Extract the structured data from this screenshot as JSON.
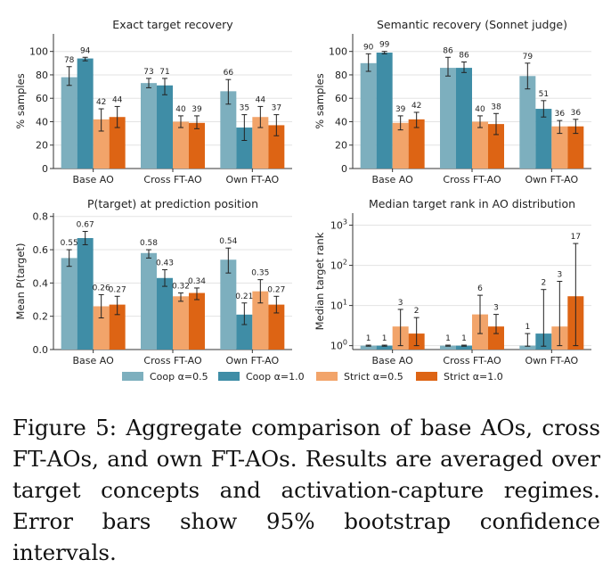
{
  "colors": {
    "coop_05": "#7dafbe",
    "coop_10": "#3f8da6",
    "strict_05": "#f2a46a",
    "strict_10": "#dd6414"
  },
  "legend": [
    {
      "label": "Coop α=0.5",
      "color_key": "coop_05"
    },
    {
      "label": "Coop α=1.0",
      "color_key": "coop_10"
    },
    {
      "label": "Strict α=0.5",
      "color_key": "strict_05"
    },
    {
      "label": "Strict α=1.0",
      "color_key": "strict_10"
    }
  ],
  "caption": "Figure 5: Aggregate comparison of base AOs, cross FT-AOs, and own FT-AOs. Results are averaged over target concepts and activation-capture regimes. Error bars show 95% bootstrap confidence intervals.",
  "chart_data": [
    {
      "type": "bar",
      "title": "Exact target recovery",
      "ylabel": "% samples",
      "xlabel": "",
      "scale": "linear",
      "ylim": [
        0,
        115
      ],
      "yticks": [
        0,
        20,
        40,
        60,
        80,
        100
      ],
      "ytick_labels": [
        "0",
        "20",
        "40",
        "60",
        "80",
        "100"
      ],
      "grid": true,
      "categories": [
        "Base AO",
        "Cross FT-AO",
        "Own FT-AO"
      ],
      "series": [
        {
          "name": "Coop α=0.5",
          "color_key": "coop_05",
          "values": [
            78,
            73,
            66
          ],
          "err_low": [
            71,
            69,
            55
          ],
          "err_high": [
            87,
            77,
            76
          ],
          "labels": [
            "78",
            "73",
            "66"
          ]
        },
        {
          "name": "Coop α=1.0",
          "color_key": "coop_10",
          "values": [
            94,
            71,
            35
          ],
          "err_low": [
            92,
            63,
            24
          ],
          "err_high": [
            95,
            77,
            46
          ],
          "labels": [
            "94",
            "71",
            "35"
          ]
        },
        {
          "name": "Strict α=0.5",
          "color_key": "strict_05",
          "values": [
            42,
            40,
            44
          ],
          "err_low": [
            32,
            35,
            35
          ],
          "err_high": [
            51,
            45,
            53
          ],
          "labels": [
            "42",
            "40",
            "44"
          ]
        },
        {
          "name": "Strict α=1.0",
          "color_key": "strict_10",
          "values": [
            44,
            39,
            37
          ],
          "err_low": [
            35,
            34,
            28
          ],
          "err_high": [
            53,
            45,
            46
          ],
          "labels": [
            "44",
            "39",
            "37"
          ]
        }
      ]
    },
    {
      "type": "bar",
      "title": "Semantic recovery (Sonnet judge)",
      "ylabel": "% samples",
      "xlabel": "",
      "scale": "linear",
      "ylim": [
        0,
        115
      ],
      "yticks": [
        0,
        20,
        40,
        60,
        80,
        100
      ],
      "ytick_labels": [
        "0",
        "20",
        "40",
        "60",
        "80",
        "100"
      ],
      "grid": true,
      "categories": [
        "Base AO",
        "Cross FT-AO",
        "Own FT-AO"
      ],
      "series": [
        {
          "name": "Coop α=0.5",
          "color_key": "coop_05",
          "values": [
            90,
            86,
            79
          ],
          "err_low": [
            83,
            79,
            68
          ],
          "err_high": [
            98,
            95,
            90
          ],
          "labels": [
            "90",
            "86",
            "79"
          ]
        },
        {
          "name": "Coop α=1.0",
          "color_key": "coop_10",
          "values": [
            99,
            86,
            51
          ],
          "err_low": [
            98,
            82,
            44
          ],
          "err_high": [
            100,
            91,
            58
          ],
          "labels": [
            "99",
            "86",
            "51"
          ]
        },
        {
          "name": "Strict α=0.5",
          "color_key": "strict_05",
          "values": [
            39,
            40,
            36
          ],
          "err_low": [
            33,
            35,
            30
          ],
          "err_high": [
            45,
            45,
            41
          ],
          "labels": [
            "39",
            "40",
            "36"
          ]
        },
        {
          "name": "Strict α=1.0",
          "color_key": "strict_10",
          "values": [
            42,
            38,
            36
          ],
          "err_low": [
            35,
            29,
            30
          ],
          "err_high": [
            48,
            47,
            42
          ],
          "labels": [
            "42",
            "38",
            "36"
          ]
        }
      ]
    },
    {
      "type": "bar",
      "title": "P(target) at prediction position",
      "ylabel": "Mean P(target)",
      "xlabel": "",
      "scale": "linear",
      "ylim": [
        0,
        0.82
      ],
      "yticks": [
        0,
        0.2,
        0.4,
        0.6,
        0.8
      ],
      "ytick_labels": [
        "0.0",
        "0.2",
        "0.4",
        "0.6",
        "0.8"
      ],
      "grid": true,
      "categories": [
        "Base AO",
        "Cross FT-AO",
        "Own FT-AO"
      ],
      "series": [
        {
          "name": "Coop α=0.5",
          "color_key": "coop_05",
          "values": [
            0.55,
            0.58,
            0.54
          ],
          "err_low": [
            0.5,
            0.55,
            0.46
          ],
          "err_high": [
            0.6,
            0.6,
            0.61
          ],
          "labels": [
            "0.55",
            "0.58",
            "0.54"
          ]
        },
        {
          "name": "Coop α=1.0",
          "color_key": "coop_10",
          "values": [
            0.67,
            0.43,
            0.21
          ],
          "err_low": [
            0.63,
            0.38,
            0.15
          ],
          "err_high": [
            0.71,
            0.48,
            0.28
          ],
          "labels": [
            "0.67",
            "0.43",
            "0.21"
          ]
        },
        {
          "name": "Strict α=0.5",
          "color_key": "strict_05",
          "values": [
            0.26,
            0.32,
            0.35
          ],
          "err_low": [
            0.19,
            0.29,
            0.28
          ],
          "err_high": [
            0.33,
            0.34,
            0.42
          ],
          "labels": [
            "0.26",
            "0.32",
            "0.35"
          ]
        },
        {
          "name": "Strict α=1.0",
          "color_key": "strict_10",
          "values": [
            0.27,
            0.34,
            0.27
          ],
          "err_low": [
            0.21,
            0.3,
            0.22
          ],
          "err_high": [
            0.32,
            0.37,
            0.32
          ],
          "labels": [
            "0.27",
            "0.34",
            "0.27"
          ]
        }
      ]
    },
    {
      "type": "bar",
      "title": "Median target rank in AO distribution",
      "ylabel": "Median target rank",
      "xlabel": "",
      "scale": "log",
      "ylim": [
        0.8,
        2000
      ],
      "yticks": [
        1,
        10,
        100,
        1000
      ],
      "ytick_labels": [
        "10^0",
        "10^1",
        "10^2",
        "10^3"
      ],
      "grid": true,
      "categories": [
        "Base AO",
        "Cross FT-AO",
        "Own FT-AO"
      ],
      "series": [
        {
          "name": "Coop α=0.5",
          "color_key": "coop_05",
          "values": [
            1,
            1,
            1
          ],
          "err_low": [
            0.97,
            0.97,
            0.97
          ],
          "err_high": [
            1.03,
            1.03,
            2
          ],
          "labels": [
            "1",
            "1",
            "1"
          ]
        },
        {
          "name": "Coop α=1.0",
          "color_key": "coop_10",
          "values": [
            1,
            1,
            2
          ],
          "err_low": [
            0.97,
            0.97,
            0.97
          ],
          "err_high": [
            1.03,
            1.03,
            25
          ],
          "labels": [
            "1",
            "1",
            "2"
          ]
        },
        {
          "name": "Strict α=0.5",
          "color_key": "strict_05",
          "values": [
            3,
            6,
            3
          ],
          "err_low": [
            1,
            2,
            1
          ],
          "err_high": [
            8,
            18,
            40
          ],
          "labels": [
            "3",
            "6",
            "3"
          ]
        },
        {
          "name": "Strict α=1.0",
          "color_key": "strict_10",
          "values": [
            2,
            3,
            17
          ],
          "err_low": [
            1,
            2,
            1
          ],
          "err_high": [
            5,
            6,
            350
          ],
          "labels": [
            "2",
            "3",
            "17"
          ]
        }
      ]
    }
  ]
}
